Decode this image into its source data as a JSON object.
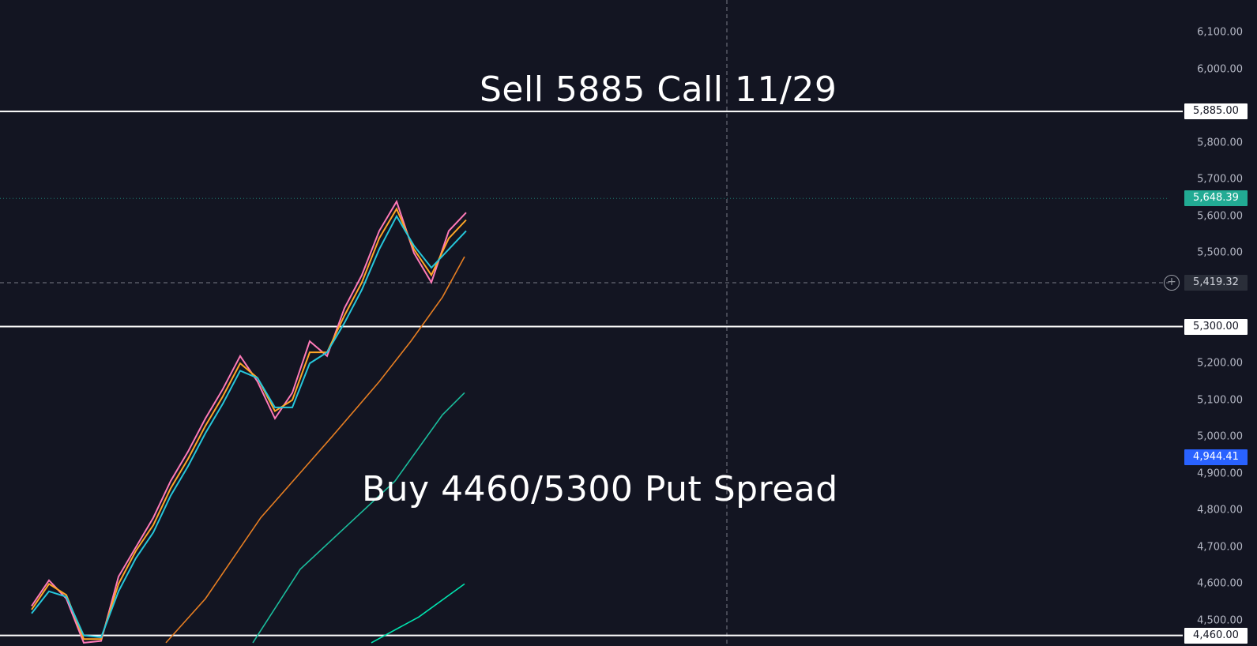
{
  "chart_data": {
    "type": "line",
    "title": "",
    "xlabel": "",
    "ylabel": "",
    "ylim": [
      4440,
      6160
    ],
    "y_axis_ticks": [
      "6,100.00",
      "6,000.00",
      "5,800.00",
      "5,700.00",
      "5,600.00",
      "5,500.00",
      "5,200.00",
      "5,100.00",
      "5,000.00",
      "4,900.00",
      "4,800.00",
      "4,700.00",
      "4,600.00",
      "4,500.00"
    ],
    "y_axis_tick_values": [
      6100,
      6000,
      5800,
      5700,
      5600,
      5500,
      5200,
      5100,
      5000,
      4900,
      4800,
      4700,
      4600,
      4500
    ],
    "price_tags": [
      {
        "label": "5,885.00",
        "value": 5885,
        "style": "white"
      },
      {
        "label": "5,648.39",
        "value": 5648.39,
        "style": "green"
      },
      {
        "label": "5,419.32",
        "value": 5419.32,
        "style": "dark"
      },
      {
        "label": "5,300.00",
        "value": 5300,
        "style": "white"
      },
      {
        "label": "4,944.41",
        "value": 4944.41,
        "style": "blue"
      },
      {
        "label": "4,460.00",
        "value": 4460,
        "style": "white"
      }
    ],
    "horizontal_lines": [
      {
        "value": 5885,
        "color": "#ffffff"
      },
      {
        "value": 5300,
        "color": "#ffffff"
      },
      {
        "value": 4460,
        "color": "#ffffff"
      }
    ],
    "series": [
      {
        "color": "#ff7ab8",
        "values": [
          4540,
          4610,
          4560,
          4440,
          4445,
          4620,
          4700,
          4780,
          4880,
          4960,
          5050,
          5130,
          5220,
          5150,
          5050,
          5120,
          5260,
          5220,
          5350,
          5440,
          5560,
          5640,
          5500,
          5420,
          5560,
          5610
        ]
      },
      {
        "color": "#ffa726",
        "values": [
          4530,
          4600,
          4570,
          4450,
          4450,
          4600,
          4690,
          4760,
          4860,
          4940,
          5030,
          5110,
          5200,
          5160,
          5070,
          5100,
          5230,
          5230,
          5330,
          5420,
          5540,
          5620,
          5510,
          5440,
          5540,
          5590
        ]
      },
      {
        "color": "#26c6da",
        "values": [
          4520,
          4580,
          4565,
          4460,
          4455,
          4580,
          4670,
          4740,
          4840,
          4920,
          5010,
          5090,
          5180,
          5160,
          5080,
          5080,
          5200,
          5230,
          5310,
          5400,
          5510,
          5600,
          5520,
          5460,
          5510,
          5560
        ]
      }
    ],
    "moving_averages": [
      {
        "color": "#e67e22",
        "points": [
          [
            210,
            4440
          ],
          [
            260,
            4560
          ],
          [
            330,
            4780
          ],
          [
            420,
            5000
          ],
          [
            480,
            5150
          ],
          [
            520,
            5260
          ],
          [
            560,
            5380
          ],
          [
            588,
            5490
          ]
        ]
      },
      {
        "color": "#1abc9c",
        "points": [
          [
            320,
            4440
          ],
          [
            380,
            4640
          ],
          [
            440,
            4760
          ],
          [
            500,
            4880
          ],
          [
            560,
            5060
          ],
          [
            588,
            5120
          ]
        ]
      },
      {
        "color": "#00e5b0",
        "points": [
          [
            470,
            4440
          ],
          [
            530,
            4510
          ],
          [
            588,
            4600
          ]
        ]
      }
    ],
    "annotations": [
      "Sell 5885 Call 11/29",
      "Buy 4460/5300 Put Spread"
    ]
  }
}
